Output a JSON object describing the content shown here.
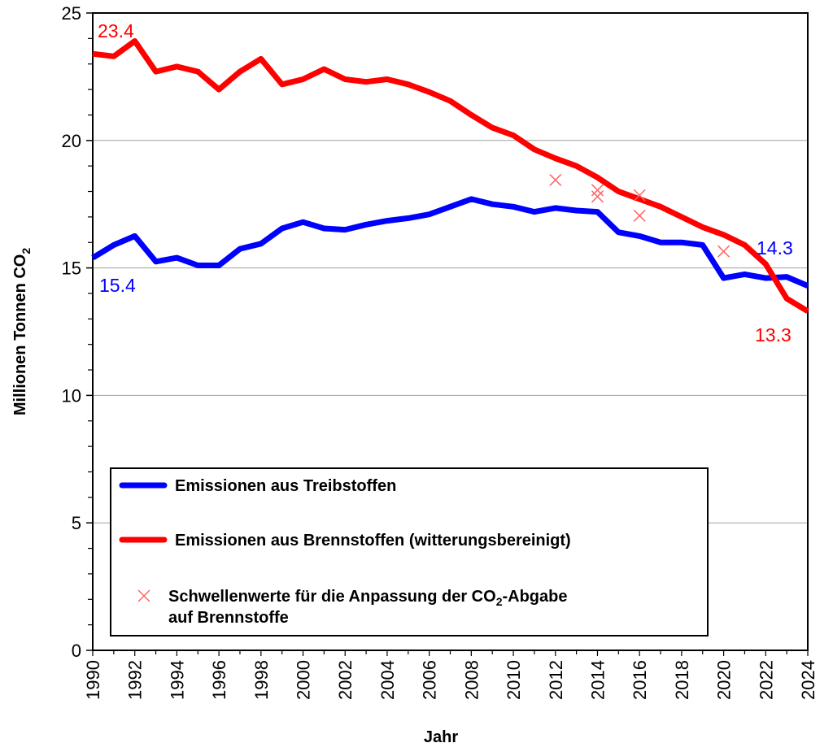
{
  "chart_data": {
    "type": "line",
    "title": "",
    "xlabel": "Jahr",
    "ylabel": "Millionen Tonnen CO",
    "ylabel_subscript": "2",
    "xlim": [
      1990,
      2024
    ],
    "ylim": [
      0,
      25
    ],
    "y_ticks": [
      0,
      5,
      10,
      15,
      20,
      25
    ],
    "y_tick_labels": [
      "0",
      "5",
      "10",
      "15",
      "20",
      "25"
    ],
    "x_ticks": [
      1990,
      1992,
      1994,
      1996,
      1998,
      2000,
      2002,
      2004,
      2006,
      2008,
      2010,
      2012,
      2014,
      2016,
      2018,
      2020,
      2022,
      2024
    ],
    "x_tick_labels": [
      "1990",
      "1992",
      "1994",
      "1996",
      "1998",
      "2000",
      "2002",
      "2004",
      "2006",
      "2008",
      "2010",
      "2012",
      "2014",
      "2016",
      "2018",
      "2020",
      "2022",
      "2024"
    ],
    "grid": "horizontal major",
    "legend_position": "bottom-left inside",
    "x": [
      1990,
      1991,
      1992,
      1993,
      1994,
      1995,
      1996,
      1997,
      1998,
      1999,
      2000,
      2001,
      2002,
      2003,
      2004,
      2005,
      2006,
      2007,
      2008,
      2009,
      2010,
      2011,
      2012,
      2013,
      2014,
      2015,
      2016,
      2017,
      2018,
      2019,
      2020,
      2021,
      2022,
      2023,
      2024
    ],
    "series": [
      {
        "name": "Emissionen aus Treibstoffen",
        "color": "#0000ff",
        "values": [
          15.4,
          15.9,
          16.25,
          15.25,
          15.4,
          15.1,
          15.1,
          15.75,
          15.95,
          16.55,
          16.8,
          16.55,
          16.5,
          16.7,
          16.85,
          16.95,
          17.1,
          17.4,
          17.7,
          17.5,
          17.4,
          17.2,
          17.35,
          17.25,
          17.2,
          16.4,
          16.25,
          16.0,
          16.0,
          15.9,
          14.6,
          14.75,
          14.6,
          14.65,
          14.3
        ]
      },
      {
        "name": "Emissionen aus Brennstoffen (witterungsbereinigt)",
        "color": "#ff0000",
        "values": [
          23.4,
          23.3,
          23.9,
          22.7,
          22.9,
          22.7,
          22.0,
          22.7,
          23.2,
          22.2,
          22.4,
          22.8,
          22.4,
          22.3,
          22.4,
          22.2,
          21.9,
          21.55,
          21.0,
          20.5,
          20.2,
          19.65,
          19.3,
          19.0,
          18.55,
          18.0,
          17.7,
          17.4,
          17.0,
          16.6,
          16.3,
          15.9,
          15.15,
          13.8,
          13.3
        ]
      }
    ],
    "threshold_series": {
      "name_part1": "Schwellenwerte für die Anpassung der CO",
      "name_sub": "2",
      "name_part2": "-Abgabe",
      "name_line2": "auf Brennstoffe",
      "color": "#ff6666",
      "points": [
        {
          "x": 2012,
          "y": 18.45
        },
        {
          "x": 2014,
          "y": 18.05
        },
        {
          "x": 2014,
          "y": 17.8
        },
        {
          "x": 2016,
          "y": 17.85
        },
        {
          "x": 2016,
          "y": 17.05
        },
        {
          "x": 2020,
          "y": 15.65
        }
      ]
    },
    "annotations": [
      {
        "text": "23.4",
        "series": "Brennstoffe",
        "x": 1990,
        "color": "#ff0000"
      },
      {
        "text": "15.4",
        "series": "Treibstoffe",
        "x": 1990,
        "color": "#0000ff"
      },
      {
        "text": "14.3",
        "series": "Treibstoffe",
        "x": 2024,
        "color": "#0000ff"
      },
      {
        "text": "13.3",
        "series": "Brennstoffe",
        "x": 2024,
        "color": "#ff0000"
      }
    ]
  }
}
